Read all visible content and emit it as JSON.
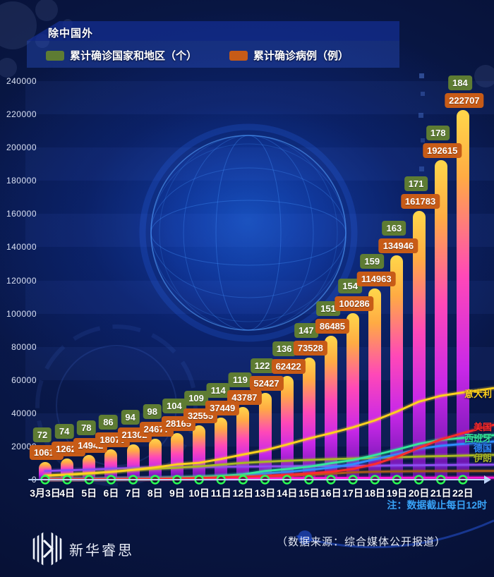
{
  "page": {
    "title": "除中国外",
    "note": "注：数据截止每日12时",
    "source": "（数据来源：综合媒体公开报道）",
    "logo_text": "新华睿思"
  },
  "legend": {
    "countries_label": "累计确诊国家和地区（个）",
    "countries_color": "#5e7c33",
    "cases_label": "累计确诊病例（例）",
    "cases_color": "#c75b17"
  },
  "chart_data": {
    "type": "bar",
    "subtype": "combo-bar-line",
    "title": "除中国外",
    "categories": [
      "3月3日",
      "4日",
      "5日",
      "6日",
      "7日",
      "8日",
      "9日",
      "10日",
      "11日",
      "12日",
      "13日",
      "14日",
      "15日",
      "16日",
      "17日",
      "18日",
      "19日",
      "20日",
      "21日",
      "22日"
    ],
    "y_axis": {
      "min": 0,
      "max": 240000,
      "step": 20000
    },
    "badge_series": {
      "name": "累计确诊国家和地区（个）",
      "color": "#5e7c33",
      "values": [
        72,
        74,
        78,
        86,
        94,
        98,
        104,
        109,
        114,
        119,
        122,
        136,
        147,
        151,
        154,
        159,
        163,
        171,
        178,
        184
      ]
    },
    "bar_series": {
      "name": "累计确诊病例（例）",
      "color": "#c75b17",
      "bar_gradient": [
        "#ffd74a",
        "#ff48b8",
        "#5c13a6"
      ],
      "values": [
        10614,
        12621,
        14942,
        18070,
        21302,
        24677,
        28165,
        32555,
        37449,
        43787,
        52427,
        62422,
        73528,
        86485,
        100286,
        114963,
        134946,
        161783,
        192615,
        222707
      ]
    },
    "line_series": [
      {
        "name": "意大利",
        "color": "#ffd21e",
        "values": [
          2500,
          3100,
          3900,
          4650,
          5900,
          7400,
          9200,
          10150,
          12460,
          15110,
          17660,
          21160,
          24750,
          28000,
          31500,
          35700,
          41000,
          47000,
          50500,
          52500
        ]
      },
      {
        "name": "美国",
        "color": "#ff2b2b",
        "values": [
          120,
          160,
          230,
          340,
          450,
          570,
          710,
          1000,
          1340,
          1760,
          2250,
          2950,
          3800,
          4700,
          6400,
          9400,
          13700,
          19100,
          24200,
          28000
        ]
      },
      {
        "name": "西班牙",
        "color": "#35e89b",
        "values": [
          170,
          230,
          290,
          400,
          520,
          670,
          1230,
          1700,
          2280,
          3150,
          5230,
          6390,
          7800,
          9940,
          11750,
          14770,
          18080,
          21570,
          24000,
          25200
        ]
      },
      {
        "name": "德国",
        "color": "#2f8cff",
        "values": [
          200,
          260,
          400,
          640,
          800,
          1040,
          1220,
          1570,
          2000,
          2750,
          3680,
          4600,
          5800,
          7270,
          9300,
          12330,
          15320,
          18600,
          20400,
          21500
        ]
      },
      {
        "name": "伊朗",
        "color": "#a8b824",
        "values": [
          2340,
          2920,
          3510,
          4750,
          5820,
          6570,
          7160,
          8040,
          9000,
          10080,
          10800,
          11400,
          11900,
          12300,
          12700,
          13100,
          13500,
          13900,
          14200,
          14500
        ]
      }
    ],
    "unlabeled_line_series": [
      {
        "name": "purple-line",
        "color": "#8d4df0",
        "values": [
          5190,
          5620,
          6090,
          6590,
          7040,
          7310,
          7480,
          7510,
          7760,
          7870,
          7980,
          8090,
          8160,
          8240,
          8320,
          8410,
          8570,
          8650,
          8800,
          8900
        ]
      },
      {
        "name": "brown-line",
        "color": "#a65a1a",
        "values": [
          280,
          330,
          380,
          450,
          520,
          600,
          700,
          900,
          1100,
          1400,
          1800,
          2300,
          2900,
          3600,
          4400,
          4800,
          5000,
          5100,
          5150,
          5200
        ]
      },
      {
        "name": "magenta-line",
        "color": "#ff17d4",
        "values": [
          300,
          350,
          400,
          450,
          500,
          550,
          600,
          650,
          700,
          760,
          820,
          880,
          940,
          1000,
          1050,
          1080,
          1100,
          1150,
          1180,
          1200
        ]
      }
    ]
  }
}
